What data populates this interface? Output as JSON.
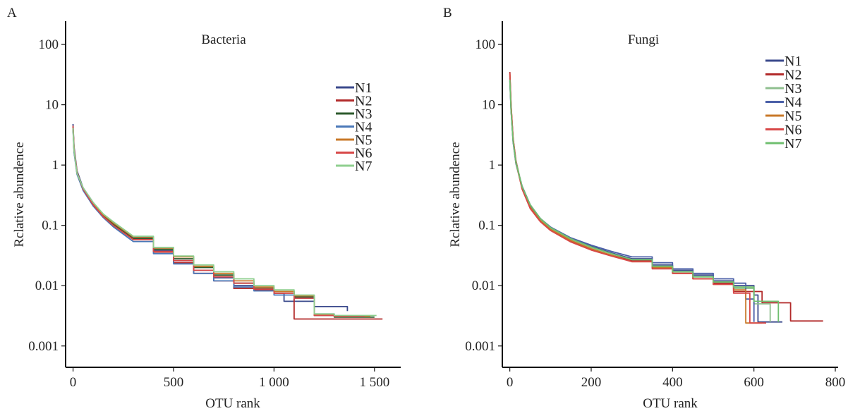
{
  "chart_data": [
    {
      "panel_label": "A",
      "type": "line",
      "title": "Bacteria",
      "xlabel": "OTU rank",
      "ylabel": "Rclative abundence",
      "y_scale": "log",
      "xlim": [
        -30,
        1620
      ],
      "ylim": [
        0.0007,
        150
      ],
      "x_ticks": [
        0,
        500,
        1000,
        1500
      ],
      "x_tick_labels": [
        "0",
        "500",
        "1 000",
        "1 500"
      ],
      "y_ticks": [
        0.001,
        0.01,
        0.1,
        1,
        10,
        100
      ],
      "y_tick_labels": [
        "0.001",
        "0.01",
        "0.1",
        "1",
        "10",
        "100"
      ],
      "grid": false,
      "legend": "top-right",
      "series": [
        {
          "name": "N1",
          "color": "#3b4a8c",
          "x": [
            0,
            5,
            20,
            50,
            100,
            150,
            200,
            300,
            400,
            500,
            600,
            700,
            800,
            900,
            1000,
            1050,
            1200,
            1365
          ],
          "y": [
            4.8,
            2.0,
            0.8,
            0.42,
            0.24,
            0.15,
            0.11,
            0.062,
            0.038,
            0.026,
            0.018,
            0.0135,
            0.01,
            0.0085,
            0.0075,
            0.0055,
            0.0045,
            0.0038
          ]
        },
        {
          "name": "N2",
          "color": "#b22a2a",
          "x": [
            0,
            5,
            20,
            50,
            100,
            150,
            200,
            300,
            400,
            500,
            600,
            700,
            800,
            900,
            1000,
            1100,
            1200,
            1300,
            1540
          ],
          "y": [
            4.2,
            1.8,
            0.75,
            0.4,
            0.22,
            0.14,
            0.1,
            0.058,
            0.036,
            0.024,
            0.016,
            0.012,
            0.009,
            0.0085,
            0.0075,
            0.0028,
            0.0028,
            0.0028,
            0.0028
          ]
        },
        {
          "name": "N3",
          "color": "#2d5a2d",
          "x": [
            0,
            5,
            20,
            50,
            100,
            150,
            200,
            300,
            400,
            500,
            600,
            700,
            800,
            900,
            1000,
            1100,
            1200,
            1300,
            1500
          ],
          "y": [
            4.0,
            1.7,
            0.72,
            0.41,
            0.23,
            0.145,
            0.105,
            0.06,
            0.04,
            0.028,
            0.02,
            0.015,
            0.011,
            0.009,
            0.008,
            0.0065,
            0.0032,
            0.003,
            0.003
          ]
        },
        {
          "name": "N4",
          "color": "#4a78b8",
          "x": [
            0,
            5,
            20,
            50,
            100,
            150,
            200,
            300,
            400,
            500,
            600,
            700,
            800,
            900,
            1000,
            1100,
            1200,
            1300
          ],
          "y": [
            3.8,
            1.6,
            0.7,
            0.38,
            0.21,
            0.135,
            0.095,
            0.054,
            0.034,
            0.023,
            0.016,
            0.012,
            0.0095,
            0.0082,
            0.007,
            0.0062,
            0.0034,
            0.0032
          ]
        },
        {
          "name": "N5",
          "color": "#c87828",
          "x": [
            0,
            5,
            20,
            50,
            100,
            150,
            200,
            300,
            400,
            500,
            600,
            700,
            800,
            900,
            1000,
            1100,
            1200,
            1300,
            1480
          ],
          "y": [
            4.3,
            1.75,
            0.74,
            0.41,
            0.23,
            0.15,
            0.11,
            0.064,
            0.042,
            0.03,
            0.021,
            0.016,
            0.012,
            0.0095,
            0.008,
            0.0068,
            0.0033,
            0.0031,
            0.0031
          ]
        },
        {
          "name": "N6",
          "color": "#d84848",
          "x": [
            0,
            5,
            20,
            50,
            100,
            150,
            200,
            300,
            400,
            500,
            600,
            700,
            800,
            900,
            1000,
            1100,
            1200,
            1300,
            1450
          ],
          "y": [
            4.5,
            1.85,
            0.76,
            0.4,
            0.22,
            0.14,
            0.1,
            0.058,
            0.037,
            0.026,
            0.018,
            0.014,
            0.011,
            0.0088,
            0.0075,
            0.0062,
            0.0032,
            0.0031,
            0.0031
          ]
        },
        {
          "name": "N7",
          "color": "#8fcf8f",
          "x": [
            0,
            5,
            20,
            50,
            100,
            150,
            200,
            300,
            400,
            500,
            600,
            700,
            800,
            900,
            1000,
            1100,
            1200,
            1300,
            1510
          ],
          "y": [
            4.1,
            1.72,
            0.73,
            0.42,
            0.24,
            0.155,
            0.115,
            0.066,
            0.043,
            0.031,
            0.022,
            0.017,
            0.013,
            0.01,
            0.0085,
            0.007,
            0.0034,
            0.0032,
            0.0032
          ]
        }
      ]
    },
    {
      "panel_label": "B",
      "type": "line",
      "title": "Fungi",
      "xlabel": "OTU rank",
      "ylabel": "Rclative abundence",
      "y_scale": "log",
      "xlim": [
        -15,
        800
      ],
      "ylim": [
        0.0007,
        150
      ],
      "x_ticks": [
        0,
        200,
        400,
        600,
        800
      ],
      "x_tick_labels": [
        "0",
        "200",
        "400",
        "600",
        "800"
      ],
      "y_ticks": [
        0.001,
        0.01,
        0.1,
        1,
        10,
        100
      ],
      "y_tick_labels": [
        "0.001",
        "0.01",
        "0.1",
        "1",
        "10",
        "100"
      ],
      "grid": false,
      "legend": "top-right",
      "series": [
        {
          "name": "N1",
          "color": "#3b4a8c",
          "x": [
            0,
            3,
            8,
            15,
            30,
            50,
            75,
            100,
            150,
            200,
            250,
            300,
            350,
            400,
            450,
            500,
            550,
            600,
            610,
            670
          ],
          "y": [
            25,
            8,
            2.5,
            1.1,
            0.45,
            0.22,
            0.13,
            0.092,
            0.06,
            0.045,
            0.035,
            0.028,
            0.022,
            0.018,
            0.015,
            0.012,
            0.01,
            0.007,
            0.0025,
            0.0025
          ]
        },
        {
          "name": "N2",
          "color": "#b22a2a",
          "x": [
            0,
            3,
            8,
            15,
            30,
            50,
            75,
            100,
            150,
            200,
            250,
            300,
            350,
            400,
            450,
            500,
            550,
            620,
            690,
            770
          ],
          "y": [
            35,
            10,
            2.8,
            1.2,
            0.42,
            0.2,
            0.12,
            0.085,
            0.055,
            0.04,
            0.032,
            0.026,
            0.02,
            0.016,
            0.013,
            0.011,
            0.008,
            0.0052,
            0.0026,
            0.0026
          ]
        },
        {
          "name": "N3",
          "color": "#8fbf8f",
          "x": [
            0,
            3,
            8,
            15,
            30,
            50,
            75,
            100,
            150,
            200,
            250,
            300,
            350,
            400,
            450,
            500,
            550,
            600,
            640
          ],
          "y": [
            30,
            9,
            2.6,
            1.15,
            0.44,
            0.21,
            0.125,
            0.09,
            0.058,
            0.043,
            0.034,
            0.027,
            0.021,
            0.017,
            0.014,
            0.0115,
            0.009,
            0.005,
            0.0025
          ]
        },
        {
          "name": "N4",
          "color": "#4a5fa8",
          "x": [
            0,
            3,
            8,
            15,
            30,
            50,
            75,
            100,
            150,
            200,
            250,
            300,
            350,
            400,
            450,
            500,
            550,
            580,
            600
          ],
          "y": [
            28,
            8.5,
            2.4,
            1.05,
            0.43,
            0.21,
            0.13,
            0.094,
            0.062,
            0.047,
            0.037,
            0.03,
            0.024,
            0.019,
            0.016,
            0.013,
            0.011,
            0.006,
            0.0025
          ]
        },
        {
          "name": "N5",
          "color": "#c87828",
          "x": [
            0,
            3,
            8,
            15,
            30,
            50,
            75,
            100,
            150,
            200,
            250,
            300,
            350,
            400,
            450,
            500,
            550,
            580,
            620
          ],
          "y": [
            32,
            9.5,
            2.7,
            1.1,
            0.41,
            0.2,
            0.12,
            0.086,
            0.056,
            0.041,
            0.032,
            0.025,
            0.02,
            0.016,
            0.013,
            0.0105,
            0.0085,
            0.0024,
            0.0024
          ]
        },
        {
          "name": "N6",
          "color": "#d84848",
          "x": [
            0,
            3,
            8,
            15,
            30,
            50,
            75,
            100,
            150,
            200,
            250,
            300,
            350,
            400,
            450,
            500,
            550,
            590,
            630
          ],
          "y": [
            33,
            9.8,
            2.75,
            1.12,
            0.4,
            0.19,
            0.115,
            0.082,
            0.053,
            0.039,
            0.031,
            0.025,
            0.019,
            0.016,
            0.013,
            0.0105,
            0.0075,
            0.0024,
            0.0024
          ]
        },
        {
          "name": "N7",
          "color": "#6fbf6f",
          "x": [
            0,
            3,
            8,
            15,
            30,
            50,
            75,
            100,
            150,
            200,
            250,
            300,
            350,
            400,
            450,
            500,
            550,
            600,
            660
          ],
          "y": [
            26,
            8,
            2.5,
            1.1,
            0.44,
            0.22,
            0.13,
            0.092,
            0.06,
            0.044,
            0.034,
            0.027,
            0.021,
            0.017,
            0.014,
            0.0115,
            0.0095,
            0.0055,
            0.0025
          ]
        }
      ]
    }
  ]
}
